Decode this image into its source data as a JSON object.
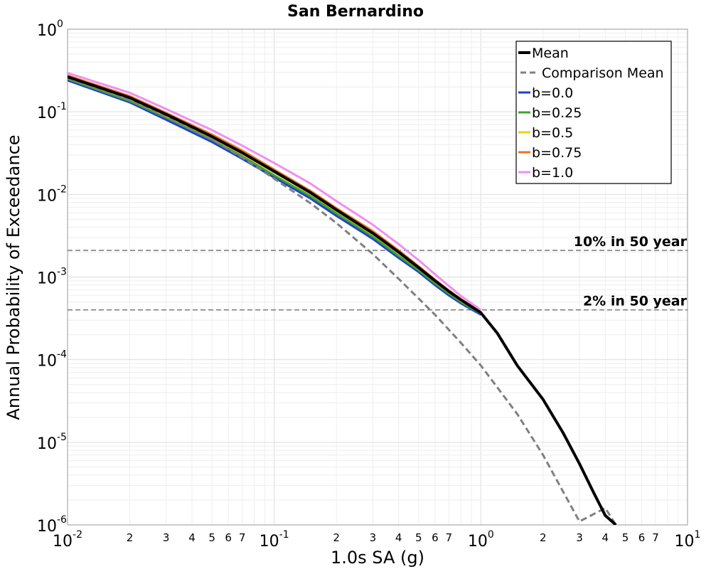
{
  "chart_data": {
    "type": "line",
    "title": "San Bernardino",
    "xlabel": "1.0s SA (g)",
    "ylabel": "Annual Probability of Exceedance",
    "xscale": "log",
    "yscale": "log",
    "xlim": [
      0.01,
      10
    ],
    "ylim": [
      1e-06,
      1
    ],
    "grid": true,
    "legend_position": "top-right",
    "x_ticks_major": [
      {
        "value": 0.01,
        "base": "10",
        "exp": "-2"
      },
      {
        "value": 0.1,
        "base": "10",
        "exp": "-1"
      },
      {
        "value": 1,
        "base": "10",
        "exp": "0"
      },
      {
        "value": 10,
        "base": "10",
        "exp": "1"
      }
    ],
    "x_ticks_minor": [
      {
        "value": 0.02,
        "label": "2"
      },
      {
        "value": 0.03,
        "label": "3"
      },
      {
        "value": 0.04,
        "label": "4"
      },
      {
        "value": 0.05,
        "label": "5"
      },
      {
        "value": 0.06,
        "label": "6"
      },
      {
        "value": 0.07,
        "label": "7"
      },
      {
        "value": 0.2,
        "label": "2"
      },
      {
        "value": 0.3,
        "label": "3"
      },
      {
        "value": 0.4,
        "label": "4"
      },
      {
        "value": 0.5,
        "label": "5"
      },
      {
        "value": 0.6,
        "label": "6"
      },
      {
        "value": 0.7,
        "label": "7"
      },
      {
        "value": 2,
        "label": "2"
      },
      {
        "value": 3,
        "label": "3"
      },
      {
        "value": 4,
        "label": "4"
      },
      {
        "value": 5,
        "label": "5"
      },
      {
        "value": 6,
        "label": "6"
      },
      {
        "value": 7,
        "label": "7"
      }
    ],
    "y_ticks_major": [
      {
        "value": 1,
        "base": "10",
        "exp": "0"
      },
      {
        "value": 0.1,
        "base": "10",
        "exp": "-1"
      },
      {
        "value": 0.01,
        "base": "10",
        "exp": "-2"
      },
      {
        "value": 0.001,
        "base": "10",
        "exp": "-3"
      },
      {
        "value": 0.0001,
        "base": "10",
        "exp": "-4"
      },
      {
        "value": 1e-05,
        "base": "10",
        "exp": "-5"
      },
      {
        "value": 1e-06,
        "base": "10",
        "exp": "-6"
      }
    ],
    "reference_lines": [
      {
        "y": 0.0021,
        "label": "10% in 50 year",
        "color": "#808080"
      },
      {
        "y": 0.0004,
        "label": "2% in 50 year",
        "color": "#808080"
      }
    ],
    "series": [
      {
        "name": "b=0.0",
        "color": "#1f3fd0",
        "style": "solid",
        "width": 3,
        "x": [
          0.01,
          0.02,
          0.03,
          0.05,
          0.07,
          0.1,
          0.15,
          0.2,
          0.3,
          0.4,
          0.5,
          0.6,
          0.7,
          0.8,
          1.0
        ],
        "y": [
          0.24,
          0.13,
          0.08,
          0.043,
          0.027,
          0.016,
          0.0089,
          0.0055,
          0.0029,
          0.0017,
          0.00115,
          0.0008,
          0.0006,
          0.00048,
          0.00035
        ]
      },
      {
        "name": "b=0.25",
        "color": "#3aa52e",
        "style": "solid",
        "width": 3,
        "x": [
          0.01,
          0.02,
          0.03,
          0.05,
          0.07,
          0.1,
          0.15,
          0.2,
          0.3,
          0.4,
          0.5,
          0.6,
          0.7,
          0.8,
          1.0
        ],
        "y": [
          0.25,
          0.135,
          0.085,
          0.046,
          0.029,
          0.017,
          0.0095,
          0.0059,
          0.0031,
          0.0018,
          0.00121,
          0.00084,
          0.00063,
          0.0005,
          0.00036
        ]
      },
      {
        "name": "b=0.5",
        "color": "#e8cf1e",
        "style": "solid",
        "width": 3,
        "x": [
          0.01,
          0.02,
          0.03,
          0.05,
          0.07,
          0.1,
          0.15,
          0.2,
          0.3,
          0.4,
          0.5,
          0.6,
          0.7,
          0.8,
          1.0
        ],
        "y": [
          0.26,
          0.145,
          0.09,
          0.049,
          0.031,
          0.0185,
          0.0102,
          0.0063,
          0.0033,
          0.00195,
          0.00128,
          0.00088,
          0.00066,
          0.00052,
          0.00037
        ]
      },
      {
        "name": "b=0.75",
        "color": "#f07020",
        "style": "solid",
        "width": 3,
        "x": [
          0.01,
          0.02,
          0.03,
          0.05,
          0.07,
          0.1,
          0.15,
          0.2,
          0.3,
          0.4,
          0.5,
          0.6,
          0.7,
          0.8,
          1.0
        ],
        "y": [
          0.275,
          0.155,
          0.097,
          0.053,
          0.034,
          0.02,
          0.011,
          0.0068,
          0.0036,
          0.0021,
          0.00135,
          0.00093,
          0.00069,
          0.00054,
          0.00038
        ]
      },
      {
        "name": "b=1.0",
        "color": "#f08ef0",
        "style": "solid",
        "width": 3,
        "x": [
          0.01,
          0.02,
          0.03,
          0.05,
          0.07,
          0.1,
          0.15,
          0.2,
          0.3,
          0.4,
          0.5,
          0.6,
          0.7,
          0.8,
          1.0
        ],
        "y": [
          0.295,
          0.17,
          0.108,
          0.06,
          0.039,
          0.024,
          0.0135,
          0.0083,
          0.0043,
          0.0025,
          0.0016,
          0.00108,
          0.00078,
          0.00059,
          0.0004
        ]
      },
      {
        "name": "Comparison Mean",
        "color": "#808080",
        "style": "dashed",
        "width": 3,
        "x": [
          0.01,
          0.02,
          0.03,
          0.05,
          0.07,
          0.1,
          0.15,
          0.2,
          0.3,
          0.4,
          0.5,
          0.6,
          0.7,
          0.8,
          1.0,
          1.5,
          2.0,
          3.0,
          4.0,
          4.5
        ],
        "y": [
          0.255,
          0.14,
          0.087,
          0.046,
          0.028,
          0.0155,
          0.0078,
          0.0045,
          0.0019,
          0.00095,
          0.00055,
          0.00035,
          0.00023,
          0.00016,
          8.5e-05,
          2.2e-05,
          7e-06,
          1.1e-06,
          1.6e-06,
          1e-06
        ]
      },
      {
        "name": "Mean",
        "color": "#000000",
        "style": "solid",
        "width": 4,
        "x": [
          0.01,
          0.02,
          0.03,
          0.05,
          0.07,
          0.1,
          0.15,
          0.2,
          0.3,
          0.4,
          0.5,
          0.6,
          0.7,
          0.8,
          1.0,
          1.2,
          1.5,
          2.0,
          2.5,
          3.0,
          3.5,
          4.0,
          4.5
        ],
        "y": [
          0.265,
          0.148,
          0.093,
          0.05,
          0.032,
          0.019,
          0.0105,
          0.0065,
          0.0034,
          0.002,
          0.0013,
          0.0009,
          0.00067,
          0.00053,
          0.00037,
          0.00021,
          8.5e-05,
          3.3e-05,
          1.3e-05,
          5.5e-06,
          2.5e-06,
          1.3e-06,
          1e-06
        ]
      }
    ],
    "legend_order": [
      "Mean",
      "Comparison Mean",
      "b=0.0",
      "b=0.25",
      "b=0.5",
      "b=0.75",
      "b=1.0"
    ]
  }
}
